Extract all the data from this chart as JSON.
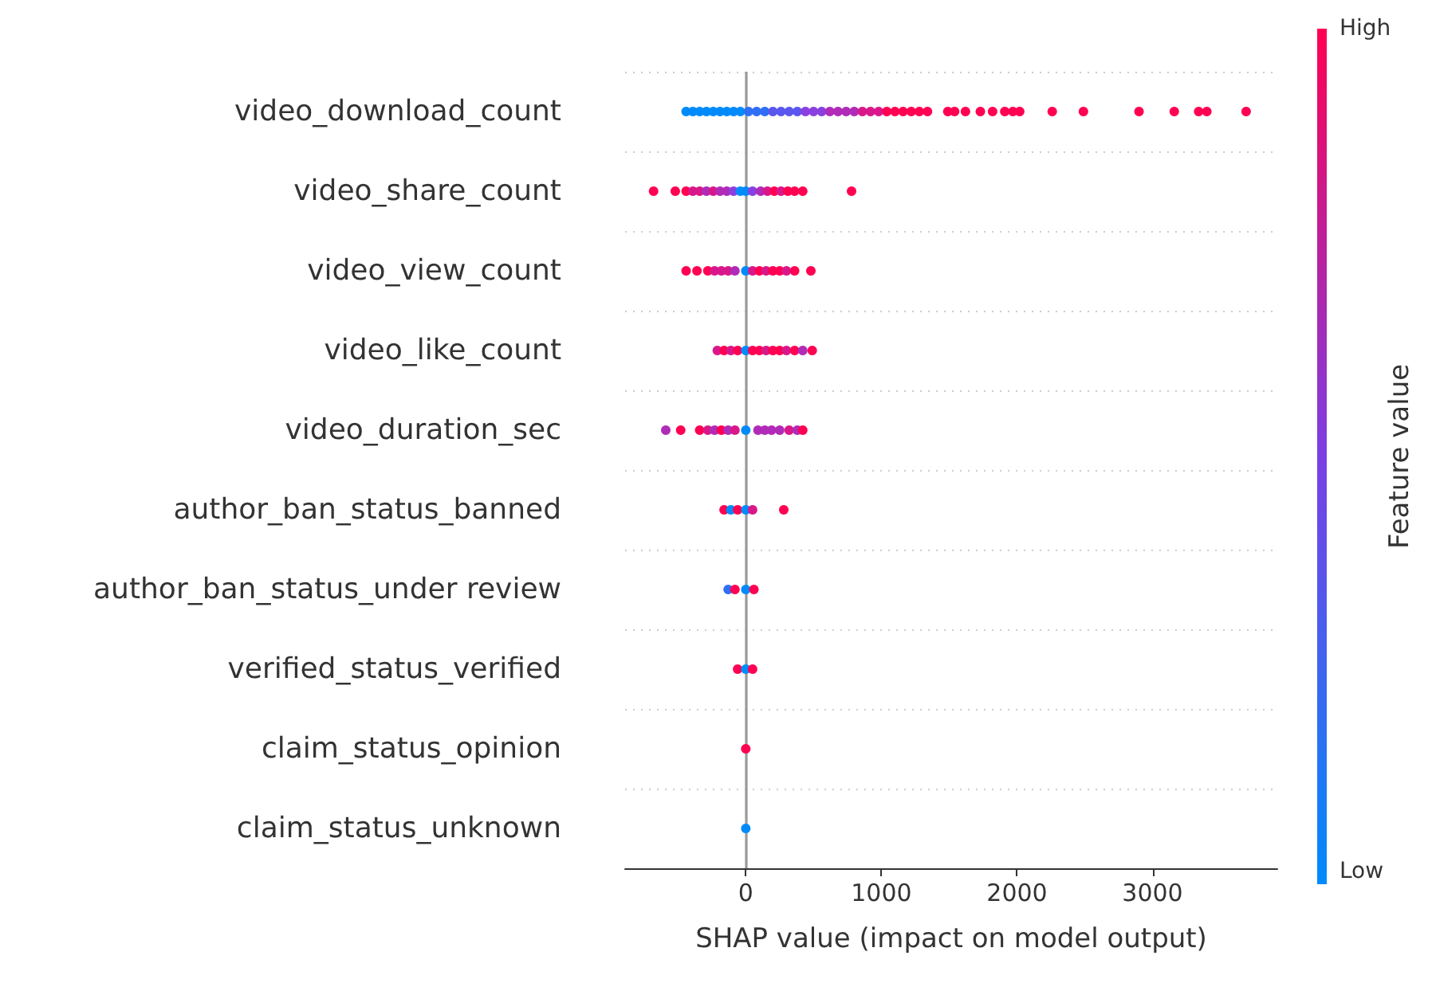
{
  "chart_data": {
    "type": "scatter",
    "orientation": "horizontal",
    "xlabel": "SHAP value (impact on model output)",
    "clabel": "Feature value",
    "annotations": [
      "High",
      "Low"
    ],
    "categories": [
      "video_download_count",
      "video_share_count",
      "video_view_count",
      "video_like_count",
      "video_duration_sec",
      "author_ban_status_banned",
      "author_ban_status_under review",
      "verified_status_verified",
      "claim_status_opinion",
      "claim_status_unknown"
    ],
    "xlim": [
      -890,
      3920
    ],
    "xticks": [
      0,
      1000,
      2000,
      3000
    ],
    "grid": "y",
    "marker": "circle",
    "ref_lines": [
      {
        "axis": "x",
        "value": 0,
        "color": "#999999"
      }
    ],
    "series": [
      {
        "x": [
          "video_download_count",
          "video_download_count",
          "video_download_count",
          "video_download_count",
          "video_download_count",
          "video_download_count",
          "video_download_count",
          "video_download_count",
          "video_download_count",
          "video_download_count",
          "video_download_count",
          "video_download_count",
          "video_download_count",
          "video_download_count",
          "video_download_count",
          "video_download_count",
          "video_download_count",
          "video_download_count",
          "video_download_count",
          "video_download_count",
          "video_download_count",
          "video_download_count",
          "video_download_count",
          "video_download_count",
          "video_download_count",
          "video_download_count",
          "video_download_count",
          "video_download_count",
          "video_download_count",
          "video_download_count",
          "video_download_count",
          "video_download_count",
          "video_download_count",
          "video_download_count",
          "video_download_count",
          "video_download_count",
          "video_download_count",
          "video_download_count",
          "video_download_count",
          "video_download_count",
          "video_download_count",
          "video_download_count",
          "video_download_count",
          "video_download_count",
          "video_download_count",
          "video_download_count",
          "video_download_count"
        ],
        "values": [
          -440,
          -390,
          -340,
          -290,
          -240,
          -190,
          -140,
          -90,
          -40,
          20,
          80,
          140,
          200,
          260,
          320,
          380,
          440,
          500,
          560,
          620,
          680,
          740,
          800,
          860,
          920,
          980,
          1040,
          1100,
          1160,
          1220,
          1280,
          1340,
          1490,
          1540,
          1620,
          1730,
          1820,
          1910,
          1970,
          2020,
          2260,
          2490,
          2900,
          3160,
          3340,
          3400,
          3690
        ],
        "colors": [
          "#008bfb",
          "#008bfb",
          "#008bfb",
          "#008bfb",
          "#008bfb",
          "#008bfb",
          "#008bfb",
          "#008bfb",
          "#008bfb",
          "#2f6ff5",
          "#2f6ff5",
          "#2f6ff5",
          "#5a56ee",
          "#5a56ee",
          "#5a56ee",
          "#5a56ee",
          "#8a3fe0",
          "#8a3fe0",
          "#8a3fe0",
          "#b02bb8",
          "#b02bb8",
          "#b02bb8",
          "#b02bb8",
          "#d8188a",
          "#d8188a",
          "#d8188a",
          "#ff0052",
          "#ff0052",
          "#ff0052",
          "#ff0052",
          "#ff0052",
          "#ff0052",
          "#ff0052",
          "#ff0052",
          "#ff0052",
          "#ff0052",
          "#ff0052",
          "#ff0052",
          "#ff0052",
          "#ff0052",
          "#ff0052",
          "#ff0052",
          "#ff0052",
          "#ff0052",
          "#ff0052",
          "#ff0052",
          "#ff0052"
        ]
      },
      {
        "x": [
          "video_share_count",
          "video_share_count",
          "video_share_count",
          "video_share_count",
          "video_share_count",
          "video_share_count",
          "video_share_count",
          "video_share_count",
          "video_share_count",
          "video_share_count",
          "video_share_count",
          "video_share_count",
          "video_share_count",
          "video_share_count",
          "video_share_count",
          "video_share_count",
          "video_share_count",
          "video_share_count",
          "video_share_count",
          "video_share_count",
          "video_share_count"
        ],
        "values": [
          -680,
          -520,
          -440,
          -390,
          -340,
          -290,
          -240,
          -190,
          -140,
          -90,
          -40,
          0,
          50,
          110,
          160,
          210,
          260,
          310,
          360,
          420,
          780
        ],
        "colors": [
          "#ff0052",
          "#ff0052",
          "#ff0052",
          "#d8188a",
          "#d8188a",
          "#b02bb8",
          "#d8188a",
          "#b02bb8",
          "#b02bb8",
          "#8a3fe0",
          "#008bfb",
          "#008bfb",
          "#8a3fe0",
          "#b02bb8",
          "#d8188a",
          "#ff0052",
          "#d8188a",
          "#ff0052",
          "#ff0052",
          "#ff0052",
          "#ff0052"
        ]
      },
      {
        "x": [
          "video_view_count",
          "video_view_count",
          "video_view_count",
          "video_view_count",
          "video_view_count",
          "video_view_count",
          "video_view_count",
          "video_view_count",
          "video_view_count",
          "video_view_count",
          "video_view_count",
          "video_view_count",
          "video_view_count",
          "video_view_count",
          "video_view_count",
          "video_view_count"
        ],
        "values": [
          -440,
          -360,
          -280,
          -230,
          -180,
          -130,
          -80,
          0,
          50,
          100,
          150,
          200,
          250,
          300,
          360,
          480
        ],
        "colors": [
          "#ff0052",
          "#ff0052",
          "#ff0052",
          "#d8188a",
          "#d8188a",
          "#d8188a",
          "#b02bb8",
          "#008bfb",
          "#d8188a",
          "#ff0052",
          "#d8188a",
          "#ff0052",
          "#ff0052",
          "#d8188a",
          "#ff0052",
          "#ff0052"
        ]
      },
      {
        "x": [
          "video_like_count",
          "video_like_count",
          "video_like_count",
          "video_like_count",
          "video_like_count",
          "video_like_count",
          "video_like_count",
          "video_like_count",
          "video_like_count",
          "video_like_count",
          "video_like_count",
          "video_like_count",
          "video_like_count",
          "video_like_count"
        ],
        "values": [
          -210,
          -160,
          -110,
          -60,
          0,
          50,
          100,
          150,
          200,
          250,
          300,
          360,
          420,
          490
        ],
        "colors": [
          "#d8188a",
          "#ff0052",
          "#d8188a",
          "#ff0052",
          "#008bfb",
          "#ff0052",
          "#ff0052",
          "#d8188a",
          "#ff0052",
          "#ff0052",
          "#d8188a",
          "#ff0052",
          "#b02bb8",
          "#ff0052"
        ]
      },
      {
        "x": [
          "video_duration_sec",
          "video_duration_sec",
          "video_duration_sec",
          "video_duration_sec",
          "video_duration_sec",
          "video_duration_sec",
          "video_duration_sec",
          "video_duration_sec",
          "video_duration_sec",
          "video_duration_sec",
          "video_duration_sec",
          "video_duration_sec",
          "video_duration_sec",
          "video_duration_sec",
          "video_duration_sec",
          "video_duration_sec"
        ],
        "values": [
          -590,
          -480,
          -340,
          -280,
          -230,
          -180,
          -130,
          -80,
          0,
          90,
          140,
          190,
          250,
          320,
          380,
          420
        ],
        "colors": [
          "#b02bb8",
          "#ff0052",
          "#ff0052",
          "#d8188a",
          "#b02bb8",
          "#ff0052",
          "#b02bb8",
          "#d8188a",
          "#008bfb",
          "#b02bb8",
          "#b02bb8",
          "#b02bb8",
          "#b02bb8",
          "#d8188a",
          "#b02bb8",
          "#ff0052"
        ]
      },
      {
        "x": [
          "author_ban_status_banned",
          "author_ban_status_banned",
          "author_ban_status_banned",
          "author_ban_status_banned",
          "author_ban_status_banned",
          "author_ban_status_banned"
        ],
        "values": [
          -160,
          -110,
          -60,
          0,
          50,
          280
        ],
        "colors": [
          "#ff0052",
          "#008bfb",
          "#ff0052",
          "#008bfb",
          "#d8188a",
          "#ff0052"
        ]
      },
      {
        "x": [
          "author_ban_status_under review",
          "author_ban_status_under review",
          "author_ban_status_under review",
          "author_ban_status_under review"
        ],
        "values": [
          -130,
          -80,
          0,
          60
        ],
        "colors": [
          "#2f6ff5",
          "#ff0052",
          "#008bfb",
          "#ff0052"
        ]
      },
      {
        "x": [
          "verified_status_verified",
          "verified_status_verified",
          "verified_status_verified"
        ],
        "values": [
          -60,
          0,
          50
        ],
        "colors": [
          "#ff0052",
          "#008bfb",
          "#ff0052"
        ]
      },
      {
        "x": [
          "claim_status_opinion"
        ],
        "values": [
          0
        ],
        "colors": [
          "#ff0052"
        ]
      },
      {
        "x": [
          "claim_status_unknown"
        ],
        "values": [
          0
        ],
        "colors": [
          "#008bfb"
        ]
      }
    ]
  }
}
